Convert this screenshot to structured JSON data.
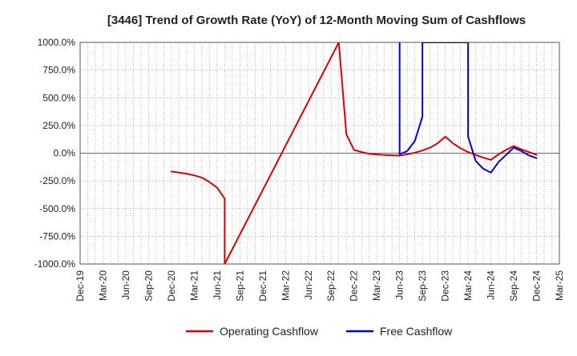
{
  "chart_data": {
    "type": "line",
    "title": "[3446]  Trend of Growth Rate (YoY) of 12-Month Moving Sum of Cashflows",
    "xlabel": "",
    "ylabel": "",
    "ylim": [
      -1000,
      1000
    ],
    "yticks": [
      1000,
      750,
      500,
      250,
      0,
      -250,
      -500,
      -750,
      -1000
    ],
    "ytick_labels": [
      "1000.0%",
      "750.0%",
      "500.0%",
      "250.0%",
      "0.0%",
      "-250.0%",
      "-500.0%",
      "-750.0%",
      "-1000.0%"
    ],
    "xticks": [
      "Dec-19",
      "Mar-20",
      "Jun-20",
      "Sep-20",
      "Dec-20",
      "Mar-21",
      "Jun-21",
      "Sep-21",
      "Dec-21",
      "Mar-22",
      "Jun-22",
      "Sep-22",
      "Dec-22",
      "Mar-23",
      "Jun-23",
      "Sep-23",
      "Dec-23",
      "Mar-24",
      "Jun-24",
      "Sep-24",
      "Dec-24",
      "Mar-25"
    ],
    "grid": true,
    "legend_position": "bottom-center",
    "series": [
      {
        "name": "Operating Cashflow",
        "color": "#e00000",
        "points": [
          {
            "x": "2020-12",
            "y": -165
          },
          {
            "x": "2021-01",
            "y": -175
          },
          {
            "x": "2021-02",
            "y": -185
          },
          {
            "x": "2021-03",
            "y": -200
          },
          {
            "x": "2021-04",
            "y": -220
          },
          {
            "x": "2021-05",
            "y": -260
          },
          {
            "x": "2021-06",
            "y": -310
          },
          {
            "x": "2021-07",
            "y": -410
          },
          {
            "x": "2021-07",
            "y": -1000
          },
          {
            "x": "2022-10",
            "y": 1000
          },
          {
            "x": "2022-11",
            "y": 170
          },
          {
            "x": "2022-12",
            "y": 30
          },
          {
            "x": "2023-01",
            "y": 10
          },
          {
            "x": "2023-02",
            "y": -5
          },
          {
            "x": "2023-03",
            "y": -12
          },
          {
            "x": "2023-04",
            "y": -16
          },
          {
            "x": "2023-05",
            "y": -19
          },
          {
            "x": "2023-06",
            "y": -22
          },
          {
            "x": "2023-07",
            "y": -10
          },
          {
            "x": "2023-08",
            "y": 5
          },
          {
            "x": "2023-09",
            "y": 25
          },
          {
            "x": "2023-10",
            "y": 50
          },
          {
            "x": "2023-11",
            "y": 90
          },
          {
            "x": "2023-12",
            "y": 150
          },
          {
            "x": "2024-01",
            "y": 90
          },
          {
            "x": "2024-02",
            "y": 45
          },
          {
            "x": "2024-03",
            "y": 10
          },
          {
            "x": "2024-04",
            "y": -15
          },
          {
            "x": "2024-05",
            "y": -40
          },
          {
            "x": "2024-06",
            "y": -60
          },
          {
            "x": "2024-07",
            "y": -10
          },
          {
            "x": "2024-08",
            "y": 30
          },
          {
            "x": "2024-09",
            "y": 65
          },
          {
            "x": "2024-10",
            "y": 35
          },
          {
            "x": "2024-11",
            "y": 10
          },
          {
            "x": "2024-12",
            "y": -15
          }
        ]
      },
      {
        "name": "Free Cashflow",
        "color": "#0000e0",
        "points": [
          {
            "x": "2023-06",
            "y": 1000
          },
          {
            "x": "2023-06",
            "y": -10
          },
          {
            "x": "2023-07",
            "y": 20
          },
          {
            "x": "2023-08",
            "y": 110
          },
          {
            "x": "2023-09",
            "y": 330
          },
          {
            "x": "2023-09",
            "y": 1000
          },
          {
            "x": "2024-03",
            "y": 1000
          },
          {
            "x": "2024-03",
            "y": 150
          },
          {
            "x": "2024-04",
            "y": -70
          },
          {
            "x": "2024-05",
            "y": -140
          },
          {
            "x": "2024-06",
            "y": -175
          },
          {
            "x": "2024-07",
            "y": -80
          },
          {
            "x": "2024-08",
            "y": -15
          },
          {
            "x": "2024-09",
            "y": 50
          },
          {
            "x": "2024-10",
            "y": 20
          },
          {
            "x": "2024-11",
            "y": -20
          },
          {
            "x": "2024-12",
            "y": -45
          }
        ]
      }
    ]
  }
}
